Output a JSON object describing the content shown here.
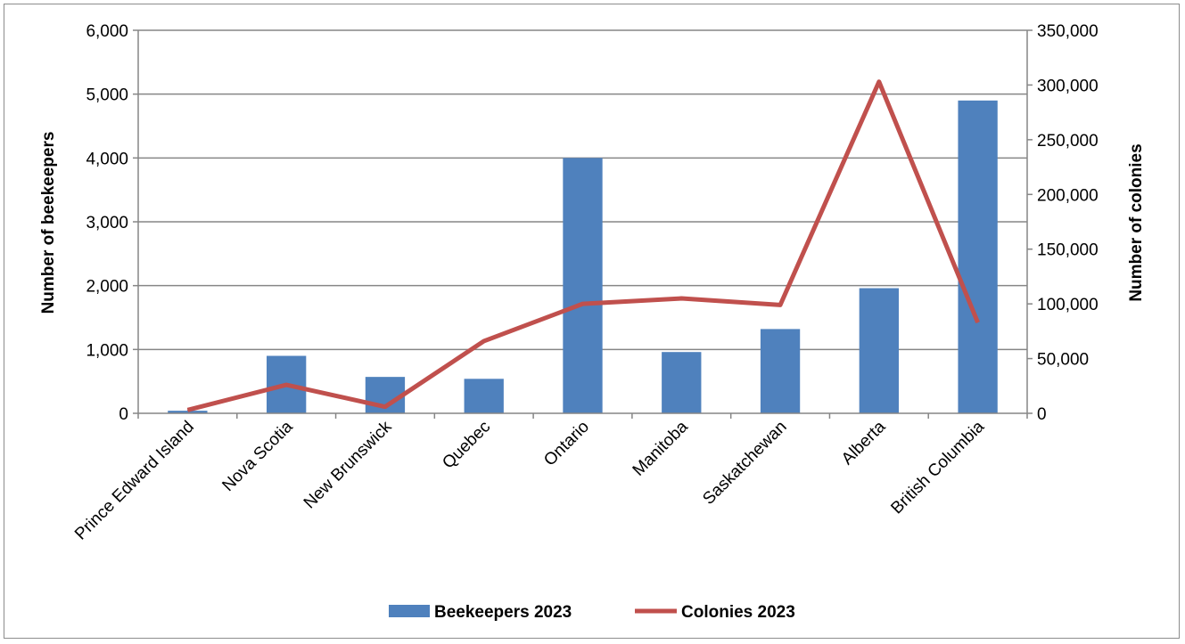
{
  "chart_data": {
    "type": "bar",
    "categories": [
      "Prince Edward Island",
      "Nova Scotia",
      "New Brunswick",
      "Quebec",
      "Ontario",
      "Manitoba",
      "Saskatchewan",
      "Alberta",
      "British Columbia"
    ],
    "series": [
      {
        "name": "Beekeepers 2023",
        "type": "bar",
        "axis": "left",
        "color": "#4f81bd",
        "values": [
          40,
          900,
          570,
          540,
          4000,
          960,
          1320,
          1960,
          4900
        ]
      },
      {
        "name": "Colonies 2023",
        "type": "line",
        "axis": "right",
        "color": "#c0504d",
        "values": [
          3000,
          26000,
          6000,
          66000,
          100000,
          105000,
          99000,
          303000,
          83000
        ]
      }
    ],
    "ylabel": "Number of beekeepers",
    "y2label": "Number of colonies",
    "ylim": [
      0,
      6000
    ],
    "y2lim": [
      0,
      350000
    ],
    "yticks": [
      "0",
      "1,000",
      "2,000",
      "3,000",
      "4,000",
      "5,000",
      "6,000"
    ],
    "y2ticks": [
      "0",
      "50,000",
      "100,000",
      "150,000",
      "200,000",
      "250,000",
      "300,000",
      "350,000"
    ],
    "grid": true,
    "legend_position": "bottom"
  }
}
